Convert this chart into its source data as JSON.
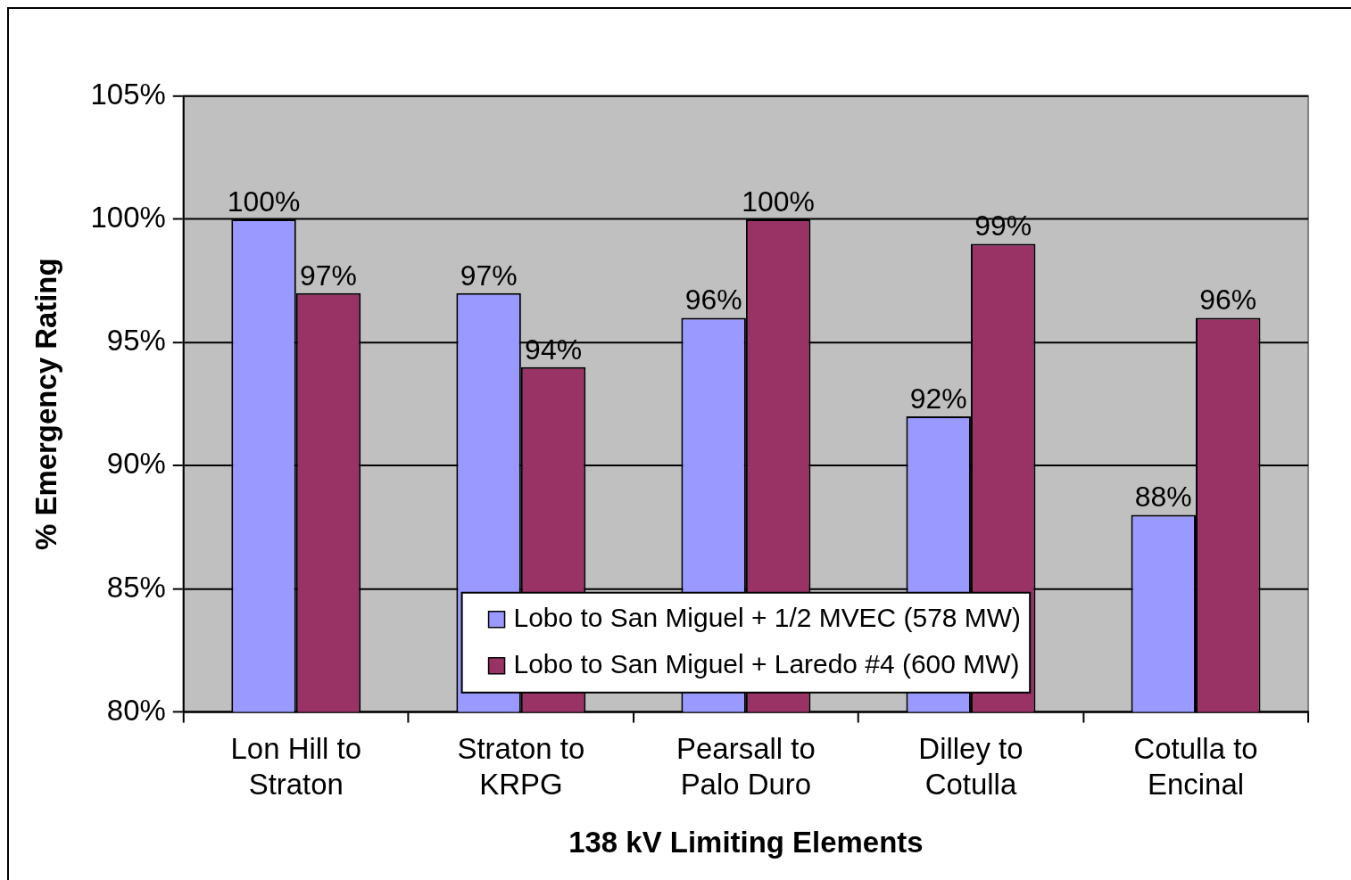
{
  "chart_data": {
    "type": "bar",
    "xlabel": "138 kV Limiting Elements",
    "ylabel": "% Emergency Rating",
    "categories": [
      "Lon Hill to Straton",
      "Straton to KRPG",
      "Pearsall to Palo Duro",
      "Dilley to Cotulla",
      "Cotulla to Encinal"
    ],
    "series": [
      {
        "name": "Lobo to San Miguel + 1/2 MVEC (578 MW)",
        "color": "#9999ff",
        "values": [
          100,
          97,
          96,
          92,
          88
        ],
        "value_labels": [
          "100%",
          "97%",
          "96%",
          "92%",
          "88%"
        ]
      },
      {
        "name": "Lobo to San Miguel + Laredo #4 (600 MW)",
        "color": "#993366",
        "values": [
          97,
          94,
          100,
          99,
          96
        ],
        "value_labels": [
          "97%",
          "94%",
          "100%",
          "99%",
          "96%"
        ]
      }
    ],
    "ylim": [
      80,
      105
    ],
    "yticks": [
      {
        "value": 80,
        "label": "80%"
      },
      {
        "value": 85,
        "label": "85%"
      },
      {
        "value": 90,
        "label": "90%"
      },
      {
        "value": 95,
        "label": "95%"
      },
      {
        "value": 100,
        "label": "100%"
      },
      {
        "value": 105,
        "label": "105%"
      }
    ],
    "grid": "y",
    "legend": "bottom"
  }
}
